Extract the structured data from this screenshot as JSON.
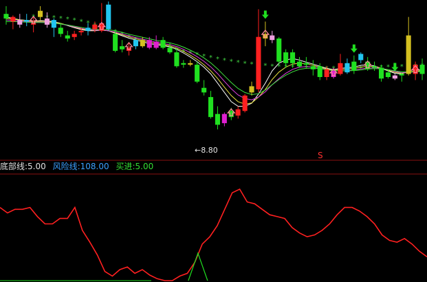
{
  "legend": {
    "bottom_line": {
      "label": "底部线",
      "value": "5.00",
      "color": "#e0e0e0"
    },
    "risk_line": {
      "label": "风险线",
      "value": "108.00",
      "color": "#3aa0ff"
    },
    "buy_line": {
      "label": "买进",
      "value": "5.00",
      "color": "#33dd33"
    },
    "bottom_text": "底部线:5.00",
    "risk_text": "风险线:108.00",
    "buy_text": "买进:5.00"
  },
  "annotations": {
    "low_price_label": "←8.80",
    "sell_signal": "S"
  },
  "colors": {
    "background": "#000000",
    "up": "#ff2020",
    "down": "#20e020",
    "cyan": "#22c6f0",
    "magenta": "#e020d0",
    "yellow": "#d4c020",
    "pink": "#f0a0e0",
    "ma_white": "#ffffff",
    "ma_yellow": "#e8e040",
    "ma_magenta": "#e040e0",
    "ma_green": "#40e040",
    "dot": "#40d040",
    "indicator": "#ff2020",
    "buy_spike": "#20e020"
  },
  "chart_data": [
    {
      "type": "candlestick",
      "title": "",
      "xlabel": "",
      "ylabel": "",
      "grid": false,
      "ylim": [
        8.2,
        13.0
      ],
      "candles": [
        {
          "o": 12.55,
          "h": 12.8,
          "l": 12.2,
          "c": 12.4,
          "col": "down"
        },
        {
          "o": 12.3,
          "h": 12.5,
          "l": 12.05,
          "c": 12.45,
          "col": "up"
        },
        {
          "o": 12.35,
          "h": 12.55,
          "l": 12.1,
          "c": 12.2,
          "col": "pink"
        },
        {
          "o": 12.35,
          "h": 12.55,
          "l": 12.15,
          "c": 12.3,
          "col": "cyan"
        },
        {
          "o": 12.2,
          "h": 12.45,
          "l": 11.95,
          "c": 12.25,
          "col": "up"
        },
        {
          "o": 12.45,
          "h": 12.8,
          "l": 12.35,
          "c": 12.65,
          "col": "yellow"
        },
        {
          "o": 12.4,
          "h": 12.6,
          "l": 12.1,
          "c": 12.2,
          "col": "pink"
        },
        {
          "o": 12.1,
          "h": 12.4,
          "l": 11.8,
          "c": 12.35,
          "col": "cyan"
        },
        {
          "o": 12.1,
          "h": 12.25,
          "l": 11.8,
          "c": 11.9,
          "col": "down"
        },
        {
          "o": 11.85,
          "h": 12.0,
          "l": 11.65,
          "c": 11.75,
          "col": "down"
        },
        {
          "o": 11.8,
          "h": 12.0,
          "l": 11.7,
          "c": 11.9,
          "col": "up"
        },
        {
          "o": 11.95,
          "h": 12.1,
          "l": 11.85,
          "c": 12.0,
          "col": "up"
        },
        {
          "o": 12.0,
          "h": 12.25,
          "l": 11.85,
          "c": 12.1,
          "col": "cyan"
        },
        {
          "o": 12.05,
          "h": 12.3,
          "l": 11.95,
          "c": 12.2,
          "col": "up"
        },
        {
          "o": 12.0,
          "h": 12.9,
          "l": 11.95,
          "c": 12.25,
          "col": "up"
        },
        {
          "o": 12.85,
          "h": 12.95,
          "l": 12.0,
          "c": 12.05,
          "col": "cyan"
        },
        {
          "o": 11.9,
          "h": 12.05,
          "l": 11.3,
          "c": 11.35,
          "col": "down"
        },
        {
          "o": 11.5,
          "h": 11.7,
          "l": 11.3,
          "c": 11.4,
          "col": "down"
        },
        {
          "o": 11.35,
          "h": 11.6,
          "l": 11.2,
          "c": 11.45,
          "col": "up"
        },
        {
          "o": 11.5,
          "h": 11.75,
          "l": 11.4,
          "c": 11.7,
          "col": "cyan"
        },
        {
          "o": 11.5,
          "h": 11.8,
          "l": 11.45,
          "c": 11.7,
          "col": "yellow"
        },
        {
          "o": 11.7,
          "h": 11.8,
          "l": 11.4,
          "c": 11.45,
          "col": "magenta"
        },
        {
          "o": 11.65,
          "h": 11.85,
          "l": 11.4,
          "c": 11.45,
          "col": "magenta"
        },
        {
          "o": 11.7,
          "h": 11.8,
          "l": 11.4,
          "c": 11.45,
          "col": "down"
        },
        {
          "o": 11.45,
          "h": 11.6,
          "l": 11.25,
          "c": 11.3,
          "col": "down"
        },
        {
          "o": 11.3,
          "h": 11.45,
          "l": 10.8,
          "c": 10.85,
          "col": "down"
        },
        {
          "o": 10.95,
          "h": 11.05,
          "l": 10.8,
          "c": 10.9,
          "col": "down"
        },
        {
          "o": 10.95,
          "h": 11.05,
          "l": 10.85,
          "c": 10.9,
          "col": "yellow"
        },
        {
          "o": 10.9,
          "h": 11.0,
          "l": 10.3,
          "c": 10.35,
          "col": "down"
        },
        {
          "o": 10.15,
          "h": 10.4,
          "l": 9.9,
          "c": 10.0,
          "col": "down"
        },
        {
          "o": 9.85,
          "h": 10.05,
          "l": 9.15,
          "c": 9.2,
          "col": "down"
        },
        {
          "o": 9.3,
          "h": 9.55,
          "l": 8.8,
          "c": 8.95,
          "col": "down"
        },
        {
          "o": 9.0,
          "h": 9.35,
          "l": 8.9,
          "c": 9.3,
          "col": "magenta"
        },
        {
          "o": 9.2,
          "h": 9.5,
          "l": 9.1,
          "c": 9.4,
          "col": "down"
        },
        {
          "o": 9.25,
          "h": 9.55,
          "l": 9.15,
          "c": 9.45,
          "col": "up"
        },
        {
          "o": 9.4,
          "h": 9.95,
          "l": 9.35,
          "c": 9.9,
          "col": "up"
        },
        {
          "o": 10.0,
          "h": 10.35,
          "l": 9.9,
          "c": 10.2,
          "col": "yellow"
        },
        {
          "o": 10.1,
          "h": 12.7,
          "l": 10.0,
          "c": 11.8,
          "col": "up"
        },
        {
          "o": 11.75,
          "h": 12.3,
          "l": 11.5,
          "c": 11.9,
          "col": "yellow"
        },
        {
          "o": 11.85,
          "h": 12.0,
          "l": 11.6,
          "c": 11.7,
          "col": "pink"
        },
        {
          "o": 11.75,
          "h": 11.8,
          "l": 10.9,
          "c": 11.0,
          "col": "down"
        },
        {
          "o": 10.95,
          "h": 11.4,
          "l": 10.8,
          "c": 11.3,
          "col": "down"
        },
        {
          "o": 11.3,
          "h": 11.4,
          "l": 10.8,
          "c": 10.95,
          "col": "down"
        },
        {
          "o": 11.0,
          "h": 11.15,
          "l": 10.8,
          "c": 10.85,
          "col": "down"
        },
        {
          "o": 10.95,
          "h": 11.15,
          "l": 10.8,
          "c": 10.9,
          "col": "down"
        },
        {
          "o": 10.85,
          "h": 11.05,
          "l": 10.55,
          "c": 10.75,
          "col": "down"
        },
        {
          "o": 10.85,
          "h": 10.95,
          "l": 10.4,
          "c": 10.5,
          "col": "down"
        },
        {
          "o": 10.75,
          "h": 10.85,
          "l": 10.4,
          "c": 10.5,
          "col": "up"
        },
        {
          "o": 10.5,
          "h": 10.8,
          "l": 10.45,
          "c": 10.7,
          "col": "magenta"
        },
        {
          "o": 10.6,
          "h": 11.25,
          "l": 10.55,
          "c": 10.95,
          "col": "up"
        },
        {
          "o": 10.95,
          "h": 11.1,
          "l": 10.6,
          "c": 10.65,
          "col": "cyan"
        },
        {
          "o": 10.7,
          "h": 11.2,
          "l": 10.6,
          "c": 11.0,
          "col": "down"
        },
        {
          "o": 11.05,
          "h": 11.3,
          "l": 10.95,
          "c": 11.25,
          "col": "cyan"
        },
        {
          "o": 11.0,
          "h": 11.15,
          "l": 10.7,
          "c": 10.75,
          "col": "down"
        },
        {
          "o": 10.85,
          "h": 11.0,
          "l": 10.7,
          "c": 10.8,
          "col": "down"
        },
        {
          "o": 10.8,
          "h": 10.9,
          "l": 10.35,
          "c": 10.45,
          "col": "down"
        },
        {
          "o": 10.65,
          "h": 10.75,
          "l": 10.45,
          "c": 10.5,
          "col": "down"
        },
        {
          "o": 10.55,
          "h": 10.6,
          "l": 10.4,
          "c": 10.45,
          "col": "pink"
        },
        {
          "o": 10.55,
          "h": 10.65,
          "l": 10.35,
          "c": 10.6,
          "col": "down"
        },
        {
          "o": 10.6,
          "h": 12.45,
          "l": 10.55,
          "c": 11.85,
          "col": "yellow"
        },
        {
          "o": 10.6,
          "h": 11.0,
          "l": 10.4,
          "c": 10.9,
          "col": "up"
        },
        {
          "o": 10.9,
          "h": 11.1,
          "l": 10.4,
          "c": 10.6,
          "col": "down"
        }
      ],
      "ma_series": [
        {
          "color_key": "ma_white",
          "values": [
            12.45,
            12.4,
            12.36,
            12.34,
            12.31,
            12.33,
            12.32,
            12.3,
            12.24,
            12.17,
            12.1,
            12.04,
            12.0,
            12.0,
            12.02,
            12.0,
            11.92,
            11.84,
            11.76,
            11.7,
            11.65,
            11.58,
            11.55,
            11.52,
            11.48,
            11.4,
            11.28,
            11.15,
            11.0,
            10.82,
            10.6,
            10.3,
            10.0,
            9.7,
            9.55,
            9.55,
            9.65,
            9.95,
            10.3,
            10.7,
            10.95,
            11.05,
            11.1,
            11.05,
            10.98,
            10.92,
            10.85,
            10.78,
            10.74,
            10.78,
            10.8,
            10.82,
            10.88,
            10.9,
            10.86,
            10.78,
            10.7,
            10.62,
            10.6,
            10.7,
            10.75,
            10.72
          ]
        },
        {
          "color_key": "ma_yellow",
          "values": [
            12.4,
            12.38,
            12.35,
            12.33,
            12.3,
            12.31,
            12.3,
            12.28,
            12.24,
            12.18,
            12.12,
            12.06,
            12.02,
            12.01,
            12.02,
            12.0,
            11.94,
            11.87,
            11.8,
            11.74,
            11.69,
            11.63,
            11.59,
            11.55,
            11.51,
            11.44,
            11.33,
            11.21,
            11.07,
            10.9,
            10.7,
            10.45,
            10.17,
            9.9,
            9.7,
            9.62,
            9.66,
            9.85,
            10.1,
            10.42,
            10.66,
            10.82,
            10.92,
            10.95,
            10.93,
            10.88,
            10.82,
            10.76,
            10.72,
            10.74,
            10.76,
            10.78,
            10.82,
            10.85,
            10.84,
            10.79,
            10.72,
            10.65,
            10.62,
            10.66,
            10.7,
            10.7
          ]
        },
        {
          "color_key": "ma_magenta",
          "values": [
            12.35,
            12.34,
            12.32,
            12.3,
            12.28,
            12.28,
            12.27,
            12.25,
            12.22,
            12.18,
            12.13,
            12.08,
            12.04,
            12.02,
            12.02,
            12.0,
            11.96,
            11.9,
            11.84,
            11.78,
            11.73,
            11.68,
            11.63,
            11.59,
            11.55,
            11.49,
            11.4,
            11.29,
            11.16,
            11.01,
            10.83,
            10.61,
            10.36,
            10.12,
            9.92,
            9.8,
            9.76,
            9.85,
            10.02,
            10.25,
            10.45,
            10.62,
            10.75,
            10.82,
            10.84,
            10.83,
            10.79,
            10.74,
            10.7,
            10.7,
            10.71,
            10.73,
            10.76,
            10.79,
            10.8,
            10.78,
            10.74,
            10.68,
            10.64,
            10.65,
            10.67,
            10.68
          ]
        },
        {
          "color_key": "ma_green",
          "values": [
            12.3,
            12.3,
            12.29,
            12.28,
            12.27,
            12.27,
            12.26,
            12.24,
            12.22,
            12.19,
            12.15,
            12.11,
            12.07,
            12.05,
            12.04,
            12.03,
            12.0,
            11.95,
            11.89,
            11.84,
            11.79,
            11.74,
            11.69,
            11.65,
            11.61,
            11.55,
            11.47,
            11.37,
            11.26,
            11.12,
            10.96,
            10.76,
            10.54,
            10.32,
            10.13,
            10.0,
            9.93,
            9.96,
            10.08,
            10.25,
            10.42,
            10.56,
            10.67,
            10.75,
            10.78,
            10.79,
            10.77,
            10.74,
            10.71,
            10.7,
            10.7,
            10.71,
            10.73,
            10.76,
            10.77,
            10.77,
            10.74,
            10.7,
            10.67,
            10.66,
            10.67,
            10.68
          ]
        }
      ],
      "dotted_line": {
        "color_key": "dot",
        "values": [
          12.55,
          12.52,
          12.5,
          12.47,
          12.45,
          12.44,
          12.43,
          12.42,
          12.4,
          12.37,
          12.34,
          12.3,
          12.25,
          12.19,
          12.12,
          12.04,
          11.96,
          11.88,
          11.8,
          11.72,
          11.65,
          11.58,
          11.52,
          11.47,
          11.42,
          11.37,
          11.32,
          11.27,
          11.22,
          11.17,
          11.12,
          11.08,
          11.04,
          11.0,
          10.97,
          10.94,
          10.91,
          10.89,
          10.87,
          10.85,
          10.84,
          10.83,
          10.82,
          10.81,
          10.8,
          10.79,
          10.79,
          10.78,
          10.78,
          10.78,
          10.78,
          10.78,
          10.78,
          10.79,
          10.8,
          10.81,
          10.82,
          10.83,
          10.84,
          10.85,
          10.86,
          10.87
        ],
        "from": 4
      },
      "up_arrows": [
        4,
        14,
        18,
        33,
        38,
        48,
        53,
        60
      ],
      "down_arrows": [
        15,
        38,
        51,
        57
      ],
      "low_marker_index": 31
    },
    {
      "type": "line",
      "title": "",
      "xlabel": "",
      "ylabel": "",
      "grid": false,
      "ylim": [
        0,
        100
      ],
      "series": [
        {
          "color_key": "indicator",
          "values": [
            80,
            74,
            78,
            78,
            80,
            70,
            62,
            62,
            68,
            68,
            80,
            55,
            42,
            28,
            10,
            5,
            12,
            15,
            8,
            12,
            6,
            2,
            0,
            0,
            5,
            8,
            20,
            40,
            48,
            60,
            78,
            96,
            100,
            86,
            84,
            78,
            72,
            70,
            68,
            58,
            52,
            48,
            50,
            55,
            62,
            72,
            80,
            80,
            76,
            70,
            62,
            50,
            44,
            42,
            46,
            40,
            32,
            26
          ]
        }
      ],
      "buy_spike": {
        "index": 20,
        "value": 30
      }
    }
  ]
}
